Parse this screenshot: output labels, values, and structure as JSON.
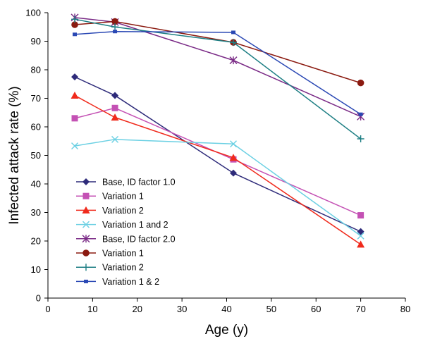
{
  "chart_data": {
    "type": "line",
    "xlabel": "Age (y)",
    "ylabel": "Infected attack rate (%)",
    "xlim": [
      0,
      80
    ],
    "ylim": [
      0,
      100
    ],
    "xticks": [
      0,
      10,
      20,
      30,
      40,
      50,
      60,
      70,
      80
    ],
    "yticks": [
      0,
      10,
      20,
      30,
      40,
      50,
      60,
      70,
      80,
      90,
      100
    ],
    "grid": false,
    "legend_position": "bottom-left",
    "series": [
      {
        "name": "Base, ID factor 1.0",
        "color": "#2e2b7a",
        "marker": "diamond",
        "x": [
          6,
          15,
          41.5,
          70
        ],
        "y": [
          77.5,
          71,
          43.8,
          23.3
        ]
      },
      {
        "name": "Variation 1",
        "color": "#c451b4",
        "marker": "square",
        "x": [
          6,
          15,
          41.5,
          70
        ],
        "y": [
          63,
          66.6,
          48.6,
          29
        ]
      },
      {
        "name": "Variation 2",
        "color": "#f02a1c",
        "marker": "triangle",
        "x": [
          6,
          15,
          41.5,
          70
        ],
        "y": [
          71,
          63.3,
          49.2,
          18.8
        ]
      },
      {
        "name": "Variation 1 and 2",
        "color": "#6bd0e3",
        "marker": "x",
        "x": [
          6,
          15,
          41.5,
          70
        ],
        "y": [
          53.3,
          55.6,
          54,
          21.8
        ]
      },
      {
        "name": "Base, ID factor 2.0",
        "color": "#7a2a86",
        "marker": "asterisk",
        "x": [
          6,
          15,
          41.5,
          70
        ],
        "y": [
          98.3,
          96.7,
          83.3,
          63.6
        ]
      },
      {
        "name": "Variation 1",
        "color": "#8b1a10",
        "marker": "circle",
        "x": [
          6,
          15,
          41.5,
          70
        ],
        "y": [
          95.8,
          96.9,
          89.6,
          75.4
        ]
      },
      {
        "name": "Variation 2",
        "color": "#1e7f84",
        "marker": "plus",
        "x": [
          6,
          15,
          41.5,
          70
        ],
        "y": [
          97.7,
          95,
          89.6,
          55.8
        ]
      },
      {
        "name": "Variation 1 & 2",
        "color": "#2a48b4",
        "marker": "small-square",
        "x": [
          6,
          15,
          41.5,
          70
        ],
        "y": [
          92.4,
          93.4,
          93.1,
          64.4
        ]
      }
    ]
  }
}
